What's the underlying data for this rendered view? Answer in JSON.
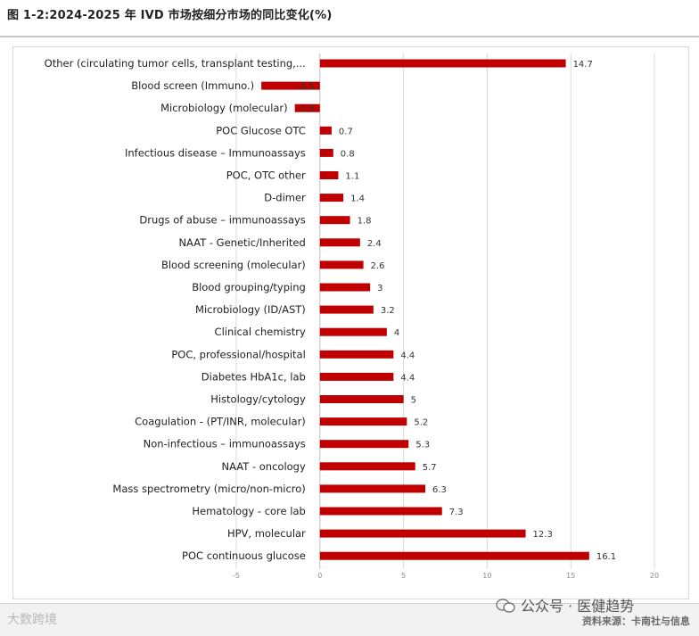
{
  "figure_title": "图 1-2:2024-2025 年 IVD 市场按细分市场的同比变化(%)",
  "watermark_left": "大数跨境",
  "watermark_right": "公众号 · 医健趋势",
  "source_note": "资料来源：卡南社与信息",
  "colors": {
    "bar": "#c00000",
    "grid": "#d9d9d9",
    "axis": "#bfbfbf",
    "text": "#1f1f1f"
  },
  "chart_data": {
    "type": "bar",
    "orientation": "horizontal",
    "categories": [
      "Other (circulating tumor cells, transplant testing,...",
      "Blood screen (Immuno.)",
      "Microbiology (molecular)",
      "POC Glucose OTC",
      "Infectious disease – Immunoassays",
      "POC, OTC other",
      "D-dimer",
      "Drugs of abuse – immunoassays",
      "NAAT - Genetic/Inherited",
      "Blood screening  (molecular)",
      "Blood grouping/typing",
      "Microbiology (ID/AST)",
      "Clinical chemistry",
      "POC, professional/hospital",
      "Diabetes HbA1c, lab",
      "Histology/cytology",
      "Coagulation - (PT/INR, molecular)",
      "Non-infectious – immunoassays",
      "NAAT - oncology",
      "Mass spectrometry (micro/non-micro)",
      "Hematology - core lab",
      "HPV, molecular",
      "POC continuous glucose"
    ],
    "values": [
      14.7,
      -3.5,
      -1.5,
      0.7,
      0.8,
      1.1,
      1.4,
      1.8,
      2.4,
      2.6,
      3,
      3.2,
      4,
      4.4,
      4.4,
      5,
      5.2,
      5.3,
      5.7,
      6.3,
      7.3,
      12.3,
      16.1
    ],
    "value_labels": [
      "14.7",
      "-3.5",
      "-1.5",
      "0.7",
      "0.8",
      "1.1",
      "1.4",
      "1.8",
      "2.4",
      "2.6",
      "3",
      "3.2",
      "4",
      "4.4",
      "4.4",
      "5",
      "5.2",
      "5.3",
      "5.7",
      "6.3",
      "7.3",
      "12.3",
      "16.1"
    ],
    "xlim": [
      -5,
      20
    ],
    "x_ticks": [
      -5,
      0,
      5,
      10,
      15,
      20
    ],
    "x_tick_labels": [
      "-5",
      "0",
      "5",
      "10",
      "15",
      "20"
    ],
    "grid": true,
    "legend": "none"
  }
}
